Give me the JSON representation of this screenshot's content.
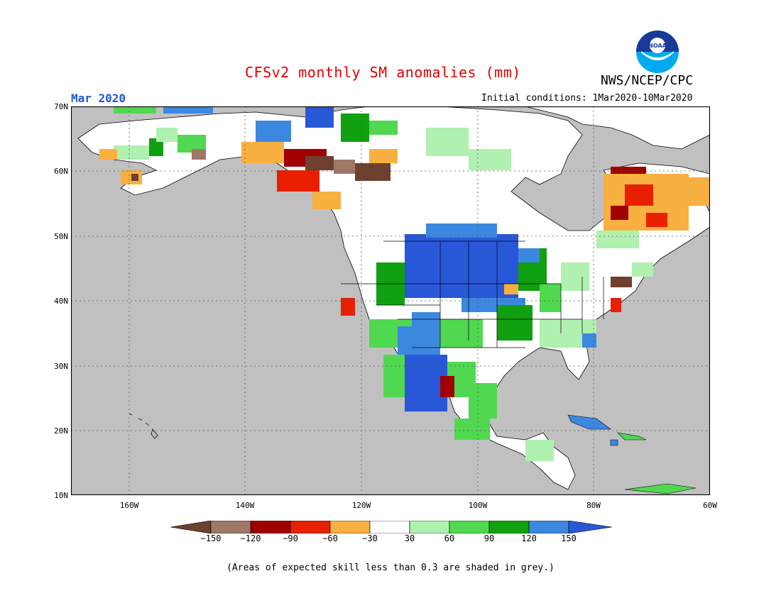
{
  "title": "CFSv2 monthly SM anomalies (mm)",
  "agency": "NWS/NCEP/CPC",
  "logo_text": "NOAA",
  "month": "Mar 2020",
  "initial_conditions": "Initial conditions: 1Mar2020-10Mar2020",
  "note": "(Areas of expected skill less than 0.3 are shaded in grey.)",
  "map": {
    "lat_range": [
      10,
      70
    ],
    "lon_range": [
      -170,
      -60
    ],
    "lat_labels": [
      "70N",
      "60N",
      "50N",
      "40N",
      "30N",
      "20N",
      "10N"
    ],
    "lon_labels": [
      "160W",
      "140W",
      "120W",
      "100W",
      "80W",
      "60W"
    ],
    "grid": "dotted"
  },
  "legend": {
    "labels": [
      "-150",
      "-120",
      "-90",
      "-60",
      "-30",
      "30",
      "60",
      "90",
      "120",
      "150"
    ],
    "colors": [
      "#6e4030",
      "#a07868",
      "#a00000",
      "#e82000",
      "#f8b040",
      "#ffffff",
      "#b0f0b0",
      "#50d850",
      "#10a010",
      "#3c88e0",
      "#2858d8"
    ]
  },
  "colors": {
    "grey": "#c0c0c0",
    "title": "#e00000",
    "month": "#1f58d8"
  }
}
